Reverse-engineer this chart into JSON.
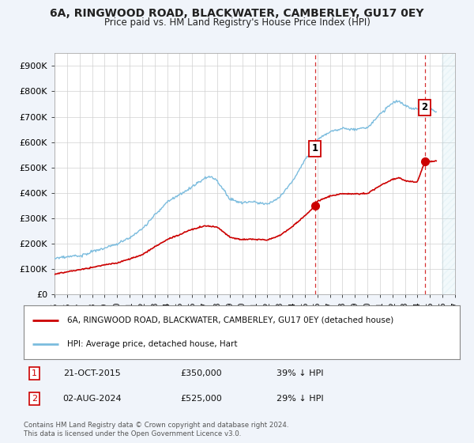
{
  "title": "6A, RINGWOOD ROAD, BLACKWATER, CAMBERLEY, GU17 0EY",
  "subtitle": "Price paid vs. HM Land Registry's House Price Index (HPI)",
  "ylim": [
    0,
    950000
  ],
  "yticks": [
    0,
    100000,
    200000,
    300000,
    400000,
    500000,
    600000,
    700000,
    800000,
    900000
  ],
  "ytick_labels": [
    "£0",
    "£100K",
    "£200K",
    "£300K",
    "£400K",
    "£500K",
    "£600K",
    "£700K",
    "£800K",
    "£900K"
  ],
  "sale1_date_x": 2015.8,
  "sale1_price": 350000,
  "sale1_label": "1",
  "sale1_date_str": "21-OCT-2015",
  "sale1_pct": "39% ↓ HPI",
  "sale2_date_x": 2024.58,
  "sale2_price": 525000,
  "sale2_label": "2",
  "sale2_date_str": "02-AUG-2024",
  "sale2_pct": "29% ↓ HPI",
  "hpi_color": "#7bbcde",
  "price_color": "#cc0000",
  "vline_color": "#cc0000",
  "legend_house_label": "6A, RINGWOOD ROAD, BLACKWATER, CAMBERLEY, GU17 0EY (detached house)",
  "legend_hpi_label": "HPI: Average price, detached house, Hart",
  "footer": "Contains HM Land Registry data © Crown copyright and database right 2024.\nThis data is licensed under the Open Government Licence v3.0.",
  "background_color": "#f0f4fa",
  "plot_bg_color": "#ffffff",
  "xmin": 1995,
  "xmax": 2027,
  "hatch_start": 2025.9
}
